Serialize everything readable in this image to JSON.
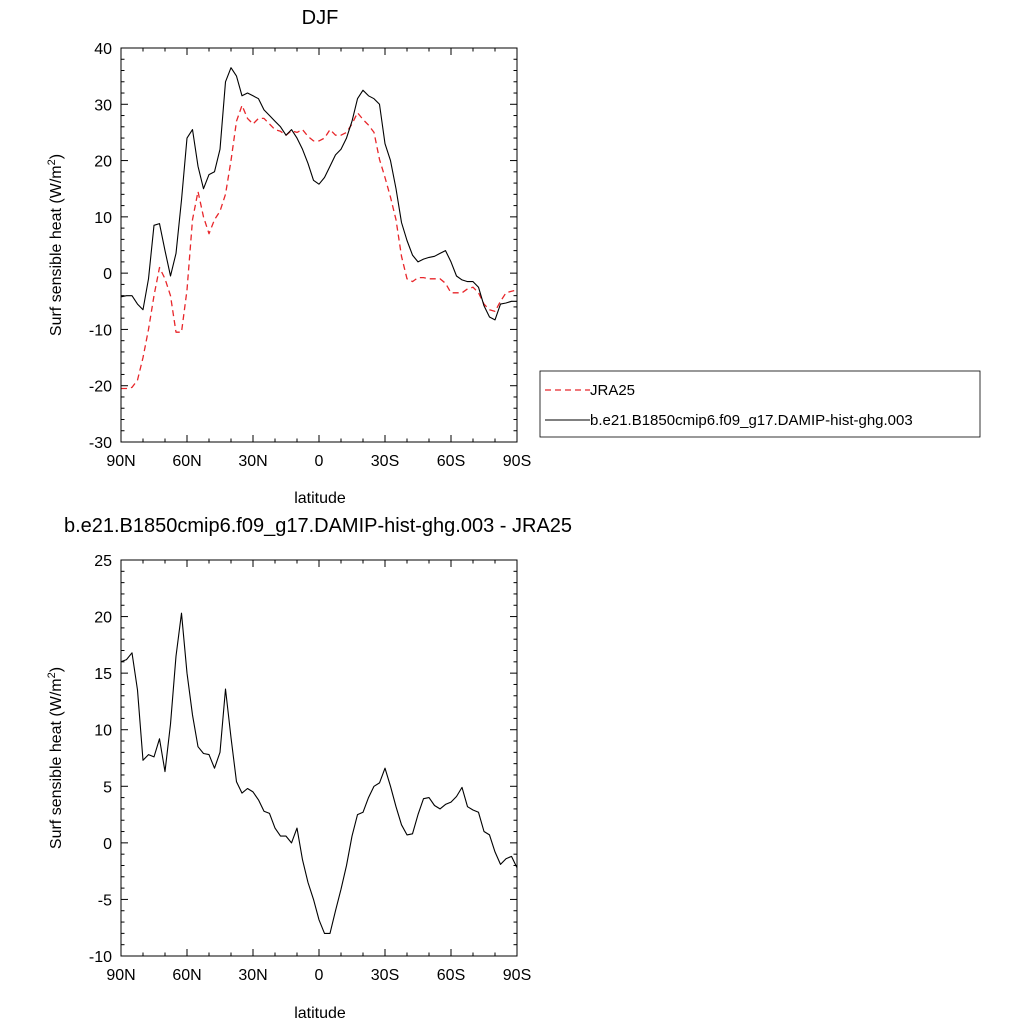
{
  "chart_data": [
    {
      "type": "line",
      "title": "DJF",
      "xlabel": "latitude",
      "ylabel": "Surf sensible heat (W/m",
      "ylabel_sup": "2",
      "ylabel_close": ")",
      "xlim": [
        90,
        -90
      ],
      "ylim": [
        -30,
        40
      ],
      "xticks": [
        {
          "v": 90,
          "label": "90N"
        },
        {
          "v": 60,
          "label": "60N"
        },
        {
          "v": 30,
          "label": "30N"
        },
        {
          "v": 0,
          "label": "0"
        },
        {
          "v": -30,
          "label": "30S"
        },
        {
          "v": -60,
          "label": "60S"
        },
        {
          "v": -90,
          "label": "90S"
        }
      ],
      "yticks": [
        -30,
        -20,
        -10,
        0,
        10,
        20,
        30,
        40
      ],
      "legend_position": "right",
      "series": [
        {
          "name": "JRA25",
          "color": "#e8262a",
          "dash": "dashed",
          "x": [
            90,
            87.5,
            85,
            82.5,
            80,
            77.5,
            75,
            72.5,
            70,
            67.5,
            65,
            62.5,
            60,
            57.5,
            55,
            52.5,
            50,
            47.5,
            45,
            42.5,
            40,
            37.5,
            35,
            32.5,
            30,
            27.5,
            25,
            22.5,
            20,
            17.5,
            15,
            12.5,
            10,
            7.5,
            5,
            2.5,
            0,
            -2.5,
            -5,
            -7.5,
            -10,
            -12.5,
            -15,
            -17.5,
            -20,
            -22.5,
            -25,
            -27.5,
            -30,
            -32.5,
            -35,
            -37.5,
            -40,
            -42.5,
            -45,
            -47.5,
            -50,
            -52.5,
            -55,
            -57.5,
            -60,
            -62.5,
            -65,
            -67.5,
            -70,
            -72.5,
            -75,
            -77.5,
            -80,
            -82.5,
            -85,
            -87.5,
            -90
          ],
          "y": [
            -20.5,
            -20.5,
            -20.3,
            -19,
            -15,
            -10,
            -4,
            1,
            -1,
            -4,
            -10.5,
            -10.5,
            -3,
            9.5,
            14.5,
            10,
            7,
            9.5,
            11,
            14,
            20,
            27,
            29.8,
            27.5,
            26.5,
            27.5,
            27.5,
            26.5,
            25.5,
            25.2,
            24.5,
            25.3,
            25,
            25.5,
            24.3,
            23.5,
            23.5,
            24,
            25.5,
            24.5,
            24.5,
            25,
            26.5,
            28.5,
            27.3,
            26.3,
            25,
            20.2,
            17,
            13.5,
            9.5,
            3,
            -1,
            -1.5,
            -0.8,
            -0.8,
            -1,
            -1,
            -1,
            -1.8,
            -3.5,
            -3.5,
            -3.5,
            -2.8,
            -2.5,
            -3.5,
            -5.5,
            -6.5,
            -6.8,
            -5,
            -3.5,
            -3.2,
            -3
          ]
        },
        {
          "name": "b.e21.B1850cmip6.f09_g17.DAMIP-hist-ghg.003",
          "color": "#000000",
          "dash": "solid",
          "x": [
            90,
            87.5,
            85,
            82.5,
            80,
            77.5,
            75,
            72.5,
            70,
            67.5,
            65,
            62.5,
            60,
            57.5,
            55,
            52.5,
            50,
            47.5,
            45,
            42.5,
            40,
            37.5,
            35,
            32.5,
            30,
            27.5,
            25,
            22.5,
            20,
            17.5,
            15,
            12.5,
            10,
            7.5,
            5,
            2.5,
            0,
            -2.5,
            -5,
            -7.5,
            -10,
            -12.5,
            -15,
            -17.5,
            -20,
            -22.5,
            -25,
            -27.5,
            -30,
            -32.5,
            -35,
            -37.5,
            -40,
            -42.5,
            -45,
            -47.5,
            -50,
            -52.5,
            -55,
            -57.5,
            -60,
            -62.5,
            -65,
            -67.5,
            -70,
            -72.5,
            -75,
            -77.5,
            -80,
            -82.5,
            -85,
            -87.5,
            -90
          ],
          "y": [
            -4.2,
            -4,
            -4,
            -5.5,
            -6.5,
            -1,
            8.5,
            8.8,
            4,
            -0.5,
            3.5,
            13,
            24,
            25.5,
            19,
            15,
            17.5,
            18,
            22,
            34,
            36.5,
            35,
            31.5,
            32,
            31.5,
            31,
            29,
            28,
            27,
            26,
            24.5,
            25.5,
            24,
            22,
            19.5,
            16.5,
            15.8,
            17,
            19,
            21,
            22,
            24,
            27,
            31,
            32.5,
            31.5,
            31,
            30,
            23,
            20,
            15,
            9,
            5.8,
            3.2,
            2,
            2.5,
            2.8,
            3,
            3.5,
            4,
            2,
            -0.5,
            -1.2,
            -1.5,
            -1.5,
            -2.5,
            -5.8,
            -7.8,
            -8.3,
            -5.5,
            -5.3,
            -5,
            -5
          ]
        }
      ]
    },
    {
      "type": "line",
      "title": "b.e21.B1850cmip6.f09_g17.DAMIP-hist-ghg.003 - JRA25",
      "xlabel": "latitude",
      "ylabel": "Surf sensible heat (W/m",
      "ylabel_sup": "2",
      "ylabel_close": ")",
      "xlim": [
        90,
        -90
      ],
      "ylim": [
        -10,
        25
      ],
      "xticks": [
        {
          "v": 90,
          "label": "90N"
        },
        {
          "v": 60,
          "label": "60N"
        },
        {
          "v": 30,
          "label": "30N"
        },
        {
          "v": 0,
          "label": "0"
        },
        {
          "v": -30,
          "label": "30S"
        },
        {
          "v": -60,
          "label": "60S"
        },
        {
          "v": -90,
          "label": "90S"
        }
      ],
      "yticks": [
        -10,
        -5,
        0,
        5,
        10,
        15,
        20,
        25
      ],
      "series": [
        {
          "color": "#000000",
          "dash": "solid",
          "x": [
            90,
            87.5,
            85,
            82.5,
            80,
            77.5,
            75,
            72.5,
            70,
            67.5,
            65,
            62.5,
            60,
            57.5,
            55,
            52.5,
            50,
            47.5,
            45,
            42.5,
            40,
            37.5,
            35,
            32.5,
            30,
            27.5,
            25,
            22.5,
            20,
            17.5,
            15,
            12.5,
            10,
            7.5,
            5,
            2.5,
            0,
            -2.5,
            -5,
            -7.5,
            -10,
            -12.5,
            -15,
            -17.5,
            -20,
            -22.5,
            -25,
            -27.5,
            -30,
            -32.5,
            -35,
            -37.5,
            -40,
            -42.5,
            -45,
            -47.5,
            -50,
            -52.5,
            -55,
            -57.5,
            -60,
            -62.5,
            -65,
            -67.5,
            -70,
            -72.5,
            -75,
            -77.5,
            -80,
            -82.5,
            -85,
            -87.5,
            -90
          ],
          "y": [
            16,
            16.2,
            16.8,
            13.5,
            7.3,
            7.8,
            7.6,
            9.2,
            6.3,
            10.5,
            16.5,
            20.3,
            15,
            11.3,
            8.5,
            7.9,
            7.8,
            6.6,
            8,
            13.6,
            9.3,
            5.4,
            4.4,
            4.8,
            4.5,
            3.8,
            2.8,
            2.6,
            1.3,
            0.6,
            0.6,
            0,
            1.3,
            -1.5,
            -3.5,
            -5,
            -6.8,
            -8,
            -8,
            -6,
            -4.1,
            -2,
            0.6,
            2.5,
            2.7,
            4,
            5,
            5.3,
            6.6,
            5,
            3.2,
            1.6,
            0.7,
            0.8,
            2.5,
            3.9,
            4,
            3.3,
            3,
            3.4,
            3.6,
            4.1,
            4.9,
            3.2,
            2.9,
            2.7,
            1,
            0.7,
            -0.8,
            -1.9,
            -1.4,
            -1.2,
            -2.2
          ]
        }
      ]
    }
  ]
}
